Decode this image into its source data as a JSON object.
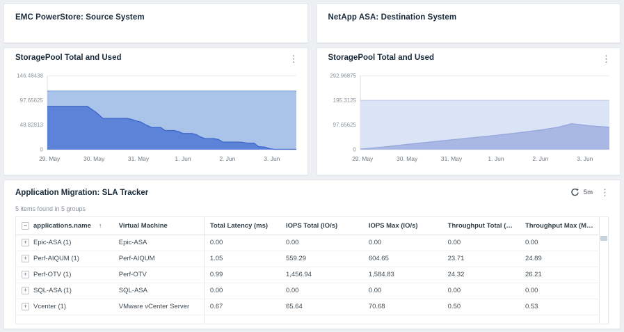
{
  "page_bg": "#edeff2",
  "source_card": {
    "title": "EMC PowerStore: Source System"
  },
  "destination_card": {
    "title": "NetApp ASA: Destination System"
  },
  "chart_cards": [
    {
      "title": "StoragePool Total and Used",
      "menu_icon": "⋮"
    },
    {
      "title": "StoragePool Total and Used",
      "menu_icon": "⋮"
    }
  ],
  "chart_data": [
    {
      "type": "area",
      "title": "StoragePool Total and Used",
      "xlabel": "",
      "ylabel": "",
      "legend": "none",
      "grid": true,
      "x_domain": [
        -0.05,
        5.55
      ],
      "x_ticks": [
        0,
        1,
        2,
        3,
        4,
        5
      ],
      "x_tick_labels": [
        "29. May",
        "30. May",
        "31. May",
        "1. Jun",
        "2. Jun",
        "3. Jun"
      ],
      "ylim": [
        0,
        146.48438
      ],
      "yticks": [
        0,
        48.82813,
        97.65625,
        146.48438
      ],
      "ytick_labels": [
        "0",
        "48.82813",
        "97.65625",
        "146.48438"
      ],
      "series": [
        {
          "name": "Total",
          "fill": "#aac3e9",
          "stroke": "#86a8dd",
          "points": [
            [
              -0.05,
              116.4
            ],
            [
              5.55,
              116.4
            ]
          ]
        },
        {
          "name": "Used",
          "fill": "#5c83d7",
          "stroke": "#3d67c6",
          "points": [
            [
              -0.05,
              86
            ],
            [
              0.85,
              86
            ],
            [
              1.05,
              74
            ],
            [
              1.2,
              62
            ],
            [
              1.75,
              62
            ],
            [
              1.85,
              60
            ],
            [
              1.95,
              57
            ],
            [
              2.05,
              55
            ],
            [
              2.15,
              50
            ],
            [
              2.3,
              44
            ],
            [
              2.5,
              44
            ],
            [
              2.6,
              38
            ],
            [
              2.8,
              38
            ],
            [
              2.9,
              36
            ],
            [
              3.0,
              32
            ],
            [
              3.2,
              32
            ],
            [
              3.3,
              30
            ],
            [
              3.4,
              25
            ],
            [
              3.5,
              22
            ],
            [
              3.7,
              22
            ],
            [
              3.8,
              20
            ],
            [
              3.9,
              15
            ],
            [
              4.3,
              15
            ],
            [
              4.45,
              13
            ],
            [
              4.6,
              13
            ],
            [
              4.7,
              6
            ],
            [
              4.85,
              5
            ],
            [
              4.95,
              2
            ],
            [
              5.05,
              0.7
            ],
            [
              5.55,
              0.7
            ]
          ]
        }
      ]
    },
    {
      "type": "area",
      "title": "StoragePool Total and Used",
      "xlabel": "",
      "ylabel": "",
      "legend": "none",
      "grid": true,
      "x_domain": [
        -0.05,
        5.55
      ],
      "x_ticks": [
        0,
        1,
        2,
        3,
        4,
        5
      ],
      "x_tick_labels": [
        "29. May",
        "30. May",
        "31. May",
        "1. Jun",
        "2. Jun",
        "3. Jun"
      ],
      "ylim": [
        0,
        292.96875
      ],
      "yticks": [
        0,
        97.65625,
        195.3125,
        292.96875
      ],
      "ytick_labels": [
        "0",
        "97.65625",
        "195.3125",
        "292.96875"
      ],
      "series": [
        {
          "name": "Total",
          "fill": "#dbe3f6",
          "stroke": "#c6d2ee",
          "points": [
            [
              -0.05,
              195.3125
            ],
            [
              5.55,
              195.3125
            ]
          ]
        },
        {
          "name": "Used",
          "fill": "#a8b7e4",
          "stroke": "#96a8dd",
          "points": [
            [
              -0.05,
              2
            ],
            [
              0.5,
              11
            ],
            [
              1,
              21
            ],
            [
              1.5,
              30
            ],
            [
              2,
              39
            ],
            [
              2.5,
              48
            ],
            [
              3,
              57
            ],
            [
              3.5,
              67
            ],
            [
              4,
              78
            ],
            [
              4.4,
              89
            ],
            [
              4.7,
              103
            ],
            [
              4.85,
              100
            ],
            [
              5.1,
              95
            ],
            [
              5.3,
              92
            ],
            [
              5.55,
              89
            ]
          ]
        }
      ]
    }
  ],
  "sla_panel": {
    "title": "Application Migration: SLA Tracker",
    "refresh_interval": "5m",
    "menu_icon": "⋮",
    "summary": "5 items found in 5 groups",
    "sort_arrow": "↑",
    "collapse_glyph": "−",
    "expand_glyph": "+",
    "columns": [
      "applications.name",
      "Virtual Machine",
      "Total Latency (ms)",
      "IOPS Total (IO/s)",
      "IOPS Max (IO/s)",
      "Throughput Total (MiB/s)",
      "Throughput Max (MiB/s)"
    ],
    "rows": [
      {
        "name": "Epic-ASA (1)",
        "cells": [
          "Epic-ASA",
          "0.00",
          "0.00",
          "0.00",
          "0.00",
          "0.00"
        ]
      },
      {
        "name": "Perf-AIQUM (1)",
        "cells": [
          "Perf-AIQUM",
          "1.05",
          "559.29",
          "604.65",
          "23.71",
          "24.89"
        ]
      },
      {
        "name": "Perf-OTV (1)",
        "cells": [
          "Perf-OTV",
          "0.99",
          "1,456.94",
          "1,584.83",
          "24.32",
          "26.21"
        ]
      },
      {
        "name": "SQL-ASA (1)",
        "cells": [
          "SQL-ASA",
          "0.00",
          "0.00",
          "0.00",
          "0.00",
          "0.00"
        ]
      },
      {
        "name": "Vcenter (1)",
        "cells": [
          "VMware vCenter Server",
          "0.67",
          "65.64",
          "70.68",
          "0.50",
          "0.53"
        ]
      }
    ]
  },
  "colors": {
    "page_background": "#edeff2",
    "card_background": "#ffffff",
    "title_text": "#17293a",
    "grid_line": "#eceef1",
    "axis_line": "#d9dcdf"
  }
}
